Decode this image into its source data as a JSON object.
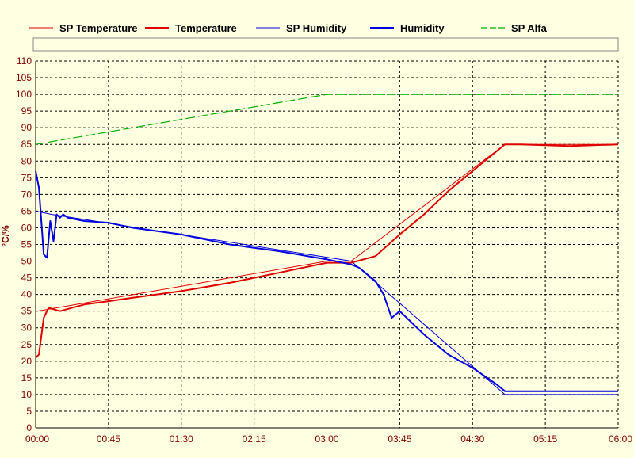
{
  "chart_data": {
    "type": "line",
    "ylabel": "°C/%",
    "ylim": [
      0,
      110
    ],
    "xlim": [
      "00:00",
      "06:00"
    ],
    "grid": true,
    "legend_position": "top",
    "x_tick_labels": [
      "00:00",
      "00:45",
      "01:30",
      "02:15",
      "03:00",
      "03:45",
      "04:30",
      "05:15",
      "06:00"
    ],
    "y_tick_labels": [
      "0",
      "5",
      "10",
      "15",
      "20",
      "25",
      "30",
      "35",
      "40",
      "45",
      "50",
      "55",
      "60",
      "65",
      "70",
      "75",
      "80",
      "85",
      "90",
      "95",
      "100",
      "105",
      "110"
    ],
    "series": [
      {
        "name": "SP Temperature",
        "color": "#e00000",
        "style": "thin",
        "x": [
          "00:00",
          "00:01",
          "03:00",
          "03:15",
          "04:50",
          "06:00"
        ],
        "y": [
          35,
          35,
          50,
          50,
          85,
          85
        ]
      },
      {
        "name": "Temperature",
        "color": "#e00000",
        "style": "thick",
        "x": [
          "00:00",
          "00:02",
          "00:05",
          "00:08",
          "00:15",
          "00:30",
          "00:45",
          "01:00",
          "01:30",
          "02:00",
          "02:15",
          "02:30",
          "03:00",
          "03:15",
          "03:30",
          "03:45",
          "04:00",
          "04:15",
          "04:30",
          "04:45",
          "04:50",
          "05:00",
          "05:30",
          "06:00"
        ],
        "y": [
          21,
          22,
          33,
          36,
          35,
          37,
          38,
          39,
          41,
          43.5,
          45,
          46.5,
          49.5,
          49.5,
          51.5,
          58,
          64,
          71,
          77,
          83,
          85,
          85,
          84.5,
          85
        ]
      },
      {
        "name": "SP Humidity",
        "color": "#0000e0",
        "style": "thin",
        "x": [
          "00:00",
          "00:10",
          "03:15",
          "04:50",
          "06:00"
        ],
        "y": [
          65,
          64,
          50,
          10,
          10
        ]
      },
      {
        "name": "Humidity",
        "color": "#0000e0",
        "style": "thick",
        "x": [
          "00:00",
          "00:02",
          "00:05",
          "00:07",
          "00:09",
          "00:11",
          "00:13",
          "00:15",
          "00:17",
          "00:20",
          "00:30",
          "00:45",
          "01:00",
          "01:30",
          "02:00",
          "02:15",
          "02:30",
          "03:00",
          "03:15",
          "03:20",
          "03:30",
          "03:35",
          "03:40",
          "03:45",
          "04:00",
          "04:15",
          "04:30",
          "04:45",
          "04:50",
          "05:00",
          "06:00"
        ],
        "y": [
          77,
          72,
          52,
          51,
          62,
          56,
          64,
          63,
          64,
          63,
          62,
          61.5,
          60,
          58,
          55,
          54,
          53,
          50.5,
          49,
          48,
          44,
          40,
          33,
          35,
          28,
          22,
          18,
          13,
          11,
          11,
          11
        ]
      },
      {
        "name": "SP Alfa",
        "color": "#00b000",
        "style": "dashed",
        "x": [
          "00:00",
          "03:00",
          "06:00"
        ],
        "y": [
          85,
          100,
          100
        ]
      }
    ]
  }
}
